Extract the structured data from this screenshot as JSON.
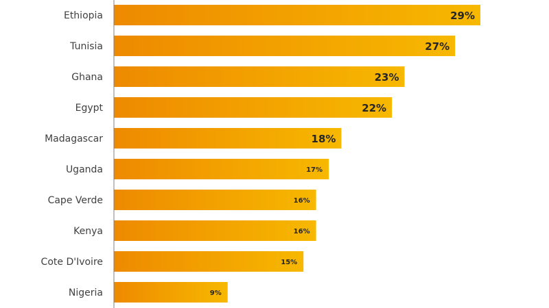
{
  "chart_data": {
    "type": "bar",
    "orientation": "horizontal",
    "categories": [
      "Ethiopia",
      "Tunisia",
      "Ghana",
      "Egypt",
      "Madagascar",
      "Uganda",
      "Cape Verde",
      "Kenya",
      "Cote D'Ivoire",
      "Nigeria"
    ],
    "values": [
      29,
      27,
      23,
      22,
      18,
      17,
      16,
      16,
      15,
      9
    ],
    "value_labels": [
      "29%",
      "27%",
      "23%",
      "22%",
      "18%",
      "17%",
      "16%",
      "16%",
      "15%",
      "9%"
    ],
    "unit": "%",
    "title": "",
    "xlabel": "",
    "ylabel": "",
    "xlim": [
      0,
      29
    ],
    "grid": false,
    "legend": "none",
    "colors": {
      "bar_start": "#ee8a00",
      "bar_end": "#f7b800",
      "axis": "#7f7f7f",
      "category_text": "#404040",
      "value_text": "#262626"
    }
  }
}
